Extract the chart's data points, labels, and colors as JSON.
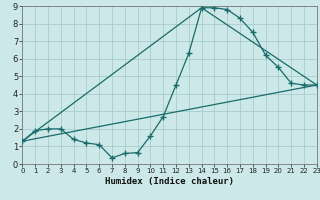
{
  "xlabel": "Humidex (Indice chaleur)",
  "xlim": [
    0,
    23
  ],
  "ylim": [
    0,
    9
  ],
  "xticks": [
    0,
    1,
    2,
    3,
    4,
    5,
    6,
    7,
    8,
    9,
    10,
    11,
    12,
    13,
    14,
    15,
    16,
    17,
    18,
    19,
    20,
    21,
    22,
    23
  ],
  "yticks": [
    0,
    1,
    2,
    3,
    4,
    5,
    6,
    7,
    8,
    9
  ],
  "bg_color": "#cce8e8",
  "grid_color": "#aacccc",
  "line_color": "#1a6b6b",
  "line1_x": [
    0,
    1,
    2,
    3,
    4,
    5,
    6,
    7,
    8,
    9,
    10,
    11,
    12,
    13,
    14,
    15,
    16,
    17,
    18,
    19,
    20,
    21,
    22,
    23
  ],
  "line1_y": [
    1.3,
    1.9,
    2.0,
    2.0,
    1.4,
    1.2,
    1.1,
    0.35,
    0.6,
    0.65,
    1.6,
    2.7,
    4.5,
    6.3,
    8.9,
    8.9,
    8.8,
    8.3,
    7.5,
    6.2,
    5.5,
    4.6,
    4.5,
    4.5
  ],
  "line2_x": [
    0,
    23
  ],
  "line2_y": [
    1.3,
    4.5
  ],
  "line3_x": [
    0,
    14,
    23
  ],
  "line3_y": [
    1.3,
    8.9,
    4.5
  ]
}
